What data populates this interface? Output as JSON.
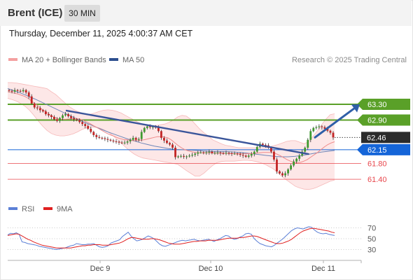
{
  "header": {
    "instrument": "Brent (ICE)",
    "interval": "30 MIN"
  },
  "timestamp": "Thursday, December 11, 2025 4:00:37 AM CET",
  "copyright": "Research © 2025 Trading Central",
  "legend": {
    "ma20_bb": {
      "label": "MA 20 + Bollinger Bands",
      "color": "#f4a0a0"
    },
    "ma50": {
      "label": "MA 50",
      "color": "#2d4f8f"
    },
    "rsi": {
      "label": "RSI",
      "color": "#5b7fd6"
    },
    "rsi_ma": {
      "label": "9MA",
      "color": "#e02020"
    }
  },
  "chart_data": [
    {
      "type": "candlestick",
      "ylim": [
        61.1,
        63.85
      ],
      "x_ticks": [
        "Dec 9",
        "Dec 10",
        "Dec 11"
      ],
      "levels": [
        {
          "value": 63.3,
          "label": "63.30",
          "kind": "resistance",
          "color": "#5aa028"
        },
        {
          "value": 62.9,
          "label": "62.90",
          "kind": "resistance",
          "color": "#5aa028"
        },
        {
          "value": 62.46,
          "label": "62.46",
          "kind": "last-price",
          "color": "#2b2b2b"
        },
        {
          "value": 62.15,
          "label": "62.15",
          "kind": "pivot",
          "color": "#1565d8"
        },
        {
          "value": 61.8,
          "label": "61.80",
          "kind": "support",
          "color": "#e8474d"
        },
        {
          "value": 61.4,
          "label": "61.40",
          "kind": "support",
          "color": "#e8474d"
        }
      ],
      "trendline": {
        "from": [
          0.18,
          63.14
        ],
        "to": [
          0.92,
          62.04
        ]
      },
      "projection": {
        "from": [
          0.94,
          62.46
        ],
        "to": [
          1.0,
          63.3
        ]
      },
      "close": [
        63.64,
        63.62,
        63.66,
        63.64,
        63.63,
        63.66,
        63.6,
        63.5,
        63.32,
        63.22,
        63.2,
        63.15,
        63.12,
        63.05,
        63.02,
        62.98,
        62.92,
        62.88,
        62.95,
        63.02,
        63.05,
        63.0,
        62.95,
        62.92,
        62.9,
        62.85,
        62.8,
        62.75,
        62.68,
        62.6,
        62.52,
        62.47,
        62.45,
        62.44,
        62.42,
        62.4,
        62.38,
        62.36,
        62.35,
        62.33,
        62.32,
        62.33,
        62.36,
        62.4,
        62.45,
        62.4,
        62.42,
        62.6,
        62.7,
        62.74,
        62.72,
        62.73,
        62.71,
        62.62,
        62.45,
        62.38,
        62.32,
        62.28,
        62.2,
        61.96,
        61.98,
        61.99,
        61.97,
        61.98,
        62.0,
        62.02,
        62.05,
        62.08,
        62.08,
        62.07,
        62.08,
        62.1,
        62.06,
        62.07,
        62.08,
        62.06,
        62.05,
        62.07,
        62.06,
        62.05,
        62.05,
        62.04,
        62.02,
        62.0,
        61.97,
        62.0,
        62.04,
        62.1,
        62.22,
        62.3,
        62.27,
        62.26,
        62.2,
        62.1,
        61.9,
        61.6,
        61.55,
        61.5,
        61.55,
        61.65,
        61.75,
        61.85,
        61.92,
        62.0,
        62.1,
        62.2,
        62.4,
        62.62,
        62.7,
        62.72,
        62.74,
        62.72,
        62.68,
        62.63,
        62.58,
        62.46
      ],
      "ma20": [
        63.62,
        63.6,
        63.58,
        63.56,
        63.53,
        63.5,
        63.45,
        63.38,
        63.32,
        63.25,
        63.18,
        63.12,
        63.06,
        63.0,
        62.96,
        62.93,
        62.92,
        62.92,
        62.93,
        62.94,
        62.94,
        62.93,
        62.9,
        62.86,
        62.82,
        62.77,
        62.72,
        62.67,
        62.62,
        62.57,
        62.53,
        62.5,
        62.46,
        62.43,
        62.41,
        62.4,
        62.39,
        62.38,
        62.38,
        62.39,
        62.4,
        62.42,
        62.44,
        62.46,
        62.48,
        62.48,
        62.47,
        62.45,
        62.4,
        62.33,
        62.26,
        62.2,
        62.15,
        62.12,
        62.1,
        62.08,
        62.07,
        62.07,
        62.07,
        62.07,
        62.07,
        62.06,
        62.06,
        62.06,
        62.06,
        62.05,
        62.05,
        62.05,
        62.05,
        62.05,
        62.05,
        62.05,
        62.05,
        62.06,
        62.07,
        62.08,
        62.08,
        62.08,
        62.07,
        62.04,
        62.0,
        61.95,
        61.9,
        61.86,
        61.83,
        61.82,
        61.83,
        61.86,
        61.9,
        61.96,
        62.02,
        62.08,
        62.15,
        62.22,
        62.28,
        62.32,
        62.35
      ],
      "ma50": [
        63.7,
        63.64,
        63.58,
        63.51,
        63.44,
        63.36,
        63.28,
        63.2,
        63.12,
        63.04,
        62.96,
        62.88,
        62.81,
        62.74,
        62.67,
        62.6,
        62.54,
        62.48,
        62.42,
        62.37,
        62.32,
        62.28,
        62.24,
        62.21,
        62.18,
        62.16,
        62.15,
        62.14,
        62.13,
        62.12,
        62.11,
        62.1,
        62.1,
        62.1,
        62.09,
        62.08,
        62.06,
        62.04,
        62.02,
        62.0,
        61.98,
        61.97,
        61.97,
        61.98,
        62.0,
        62.03,
        62.06,
        62.09,
        62.11,
        62.13
      ],
      "bb_upper": [
        63.85,
        63.85,
        63.84,
        63.82,
        63.8,
        63.78,
        63.76,
        63.74,
        63.72,
        63.7,
        63.62,
        63.55,
        63.45,
        63.35,
        63.25,
        63.18,
        63.12,
        63.08,
        63.05,
        63.05,
        63.08,
        63.12,
        63.15,
        63.16,
        63.15,
        63.12,
        63.08,
        63.02,
        62.96,
        62.9,
        62.84,
        62.8,
        62.78,
        62.76,
        62.76,
        62.78,
        62.8,
        62.84,
        62.9,
        62.98,
        63.02,
        63.0,
        62.92,
        62.8,
        62.68,
        62.58,
        62.5,
        62.4,
        62.35,
        62.3,
        62.26,
        62.24,
        62.22,
        62.2,
        62.2,
        62.2,
        62.2,
        62.2,
        62.2,
        62.2,
        62.22,
        62.25,
        62.28,
        62.32,
        62.36,
        62.38,
        62.38,
        62.34,
        62.3,
        62.35,
        62.48,
        62.62,
        62.78,
        62.92,
        63.04,
        63.06
      ],
      "bb_lower": [
        63.45,
        63.42,
        63.38,
        63.32,
        63.25,
        63.15,
        63.02,
        62.88,
        62.75,
        62.64,
        62.56,
        62.52,
        62.5,
        62.5,
        62.52,
        62.55,
        62.6,
        62.66,
        62.7,
        62.72,
        62.72,
        62.7,
        62.66,
        62.6,
        62.52,
        62.42,
        62.32,
        62.22,
        62.12,
        62.04,
        61.98,
        61.94,
        61.92,
        61.9,
        61.88,
        61.86,
        61.84,
        61.82,
        61.8,
        61.78,
        61.7,
        61.62,
        61.55,
        61.48,
        61.48,
        61.55,
        61.65,
        61.75,
        61.82,
        61.85,
        61.86,
        61.86,
        61.86,
        61.87,
        61.88,
        61.88,
        61.87,
        61.85,
        61.82,
        61.78,
        61.72,
        61.66,
        61.56,
        61.46,
        61.38,
        61.3,
        61.22,
        61.18,
        61.15,
        61.14,
        61.16,
        61.2,
        61.25,
        61.3,
        61.35,
        61.38
      ]
    },
    {
      "type": "line",
      "ylim": [
        10,
        90
      ],
      "y_ticks": [
        70,
        50,
        30
      ],
      "series": [
        {
          "name": "RSI",
          "values": [
            57,
            60,
            59,
            61,
            58,
            44,
            43,
            41,
            40,
            39,
            38,
            36,
            35,
            34,
            33,
            32,
            31,
            30,
            31,
            32,
            33,
            35,
            37,
            38,
            41,
            40,
            39,
            39,
            40,
            40,
            41,
            38,
            35,
            34,
            35,
            37,
            42,
            44,
            46,
            48,
            54,
            58,
            62,
            55,
            50,
            46,
            47,
            49,
            52,
            55,
            53,
            50,
            45,
            40,
            37,
            36,
            38,
            40,
            42,
            44,
            46,
            47,
            46,
            47,
            48,
            49,
            47,
            46,
            47,
            48,
            49,
            47,
            45,
            48,
            50,
            53,
            56,
            55,
            51,
            49,
            50,
            53,
            55,
            59,
            60,
            58,
            50,
            45,
            41,
            39,
            37,
            36,
            35,
            38,
            42,
            46,
            50,
            55,
            60,
            65,
            68,
            70,
            69,
            68,
            70,
            72,
            71,
            66,
            62,
            60,
            59,
            60,
            58,
            57,
            56
          ]
        },
        {
          "name": "9MA",
          "values": [
            56,
            57,
            58,
            59,
            58,
            55,
            52,
            49,
            47,
            44,
            42,
            40,
            38,
            37,
            36,
            35,
            34,
            33,
            33,
            33,
            33,
            33,
            33,
            34,
            35,
            36,
            37,
            37,
            38,
            38,
            39,
            39,
            39,
            38,
            38,
            38,
            39,
            40,
            41,
            42,
            44,
            47,
            50,
            52,
            52,
            51,
            50,
            49,
            49,
            49,
            50,
            50,
            49,
            48,
            46,
            44,
            42,
            41,
            40,
            40,
            40,
            41,
            42,
            43,
            44,
            45,
            45,
            46,
            46,
            46,
            47,
            47,
            47,
            47,
            48,
            49,
            50,
            51,
            51,
            51,
            51,
            52,
            52,
            53,
            54,
            55,
            55,
            54,
            52,
            50,
            48,
            46,
            44,
            42,
            41,
            41,
            42,
            44,
            46,
            49,
            53,
            57,
            61,
            64,
            66,
            68,
            69,
            69,
            68,
            67,
            66,
            65,
            64,
            62,
            61
          ]
        }
      ]
    }
  ]
}
